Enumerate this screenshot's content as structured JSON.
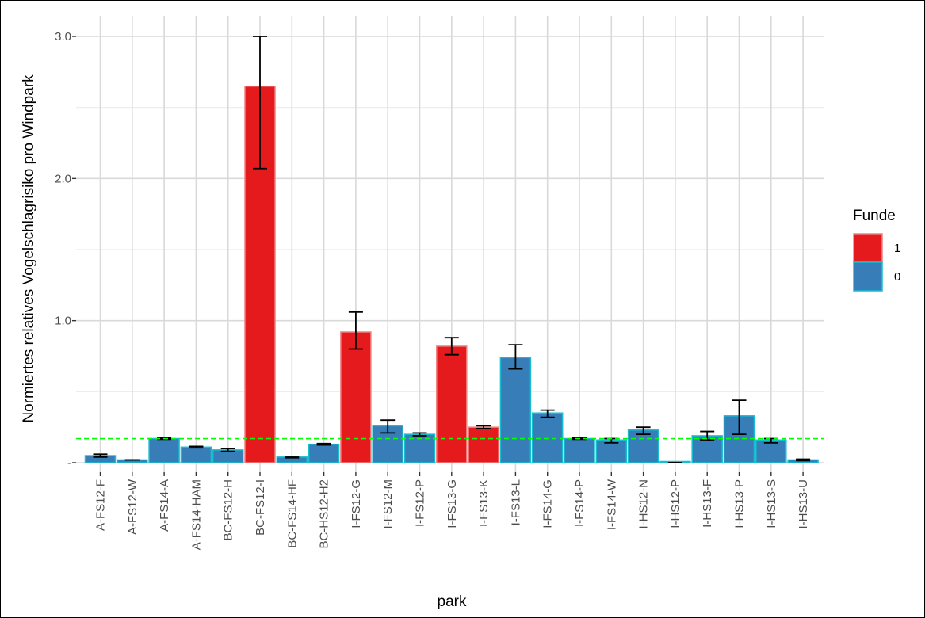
{
  "chart_data": {
    "type": "bar",
    "title": "",
    "xlabel": "park",
    "ylabel": "Normiertes relatives Vogelschlagrisiko pro Windpark",
    "ylim": [
      0,
      3.05
    ],
    "yticks": [
      {
        "value": 3.0,
        "label": "3.0"
      },
      {
        "value": 2.0,
        "label": "2.0"
      },
      {
        "value": 1.0,
        "label": "1.0"
      },
      {
        "value": 0.0,
        "label": "-"
      }
    ],
    "grid": true,
    "reference_line": {
      "value": 0.17,
      "color": "#00ff00",
      "style": "dashed"
    },
    "categories": [
      "A-FS12-F",
      "A-FS12-W",
      "A-FS14-A",
      "A-FS14-HAM",
      "BC-FS12-H",
      "BC-FS12-I",
      "BC-FS14-HF",
      "BC-HS12-H2",
      "I-FS12-G",
      "I-FS12-M",
      "I-FS12-P",
      "I-FS13-G",
      "I-FS13-K",
      "I-FS13-L",
      "I-FS14-G",
      "I-FS14-P",
      "I-FS14-W",
      "I-HS12-N",
      "I-HS12-P",
      "I-HS13-F",
      "I-HS13-P",
      "I-HS13-S",
      "I-HS13-U"
    ],
    "values": [
      0.05,
      0.02,
      0.17,
      0.11,
      0.09,
      2.65,
      0.04,
      0.13,
      0.92,
      0.26,
      0.2,
      0.82,
      0.25,
      0.74,
      0.35,
      0.17,
      0.16,
      0.23,
      0.0,
      0.19,
      0.33,
      0.16,
      0.02
    ],
    "error_low": [
      0.04,
      0.02,
      0.165,
      0.105,
      0.08,
      2.07,
      0.035,
      0.125,
      0.8,
      0.21,
      0.19,
      0.76,
      0.24,
      0.66,
      0.32,
      0.165,
      0.14,
      0.2,
      0.0,
      0.16,
      0.2,
      0.14,
      0.015
    ],
    "error_high": [
      0.06,
      0.02,
      0.175,
      0.115,
      0.1,
      3.0,
      0.045,
      0.135,
      1.06,
      0.3,
      0.21,
      0.88,
      0.26,
      0.83,
      0.37,
      0.175,
      0.17,
      0.25,
      0.0,
      0.22,
      0.44,
      0.17,
      0.025
    ],
    "funde": [
      "0",
      "0",
      "0",
      "0",
      "0",
      "1",
      "0",
      "0",
      "1",
      "0",
      "0",
      "1",
      "1",
      "0",
      "0",
      "0",
      "0",
      "0",
      "0",
      "0",
      "0",
      "0",
      "0"
    ],
    "legend": {
      "title": "Funde",
      "position": "right",
      "entries": [
        {
          "key": "1",
          "label": "1",
          "fill": "#e41a1c",
          "stroke": "#f08080"
        },
        {
          "key": "0",
          "label": "0",
          "fill": "#377eb8",
          "stroke": "#17becf"
        }
      ]
    }
  }
}
